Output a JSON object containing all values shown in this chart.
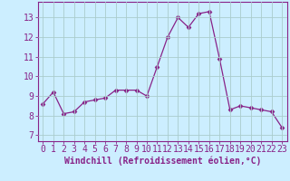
{
  "x": [
    0,
    1,
    2,
    3,
    4,
    5,
    6,
    7,
    8,
    9,
    10,
    11,
    12,
    13,
    14,
    15,
    16,
    17,
    18,
    19,
    20,
    21,
    22,
    23
  ],
  "y": [
    8.6,
    9.2,
    8.1,
    8.2,
    8.7,
    8.8,
    8.9,
    9.3,
    9.3,
    9.3,
    9.0,
    10.5,
    12.0,
    13.0,
    12.5,
    13.2,
    13.3,
    10.9,
    8.3,
    8.5,
    8.4,
    8.3,
    8.2,
    7.4
  ],
  "line_color": "#882288",
  "marker": "D",
  "marker_size": 2.5,
  "bg_color": "#cceeff",
  "grid_color": "#aacccc",
  "xlabel": "Windchill (Refroidissement éolien,°C)",
  "xlabel_fontsize": 7,
  "ytick_labels": [
    "7",
    "8",
    "9",
    "10",
    "11",
    "12",
    "13"
  ],
  "ytick_values": [
    7,
    8,
    9,
    10,
    11,
    12,
    13
  ],
  "xtick_values": [
    0,
    1,
    2,
    3,
    4,
    5,
    6,
    7,
    8,
    9,
    10,
    11,
    12,
    13,
    14,
    15,
    16,
    17,
    18,
    19,
    20,
    21,
    22,
    23
  ],
  "ylim": [
    6.7,
    13.8
  ],
  "xlim": [
    -0.5,
    23.5
  ],
  "tick_fontsize": 7,
  "spine_color": "#882288"
}
